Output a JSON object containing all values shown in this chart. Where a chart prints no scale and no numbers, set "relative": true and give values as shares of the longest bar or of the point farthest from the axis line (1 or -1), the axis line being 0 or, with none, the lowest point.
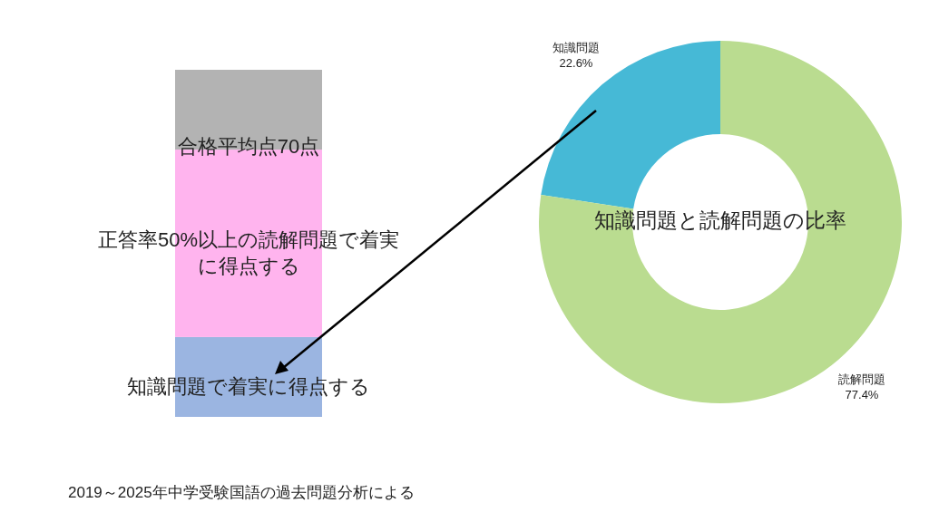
{
  "chart_data": [
    {
      "type": "bar",
      "stacked": true,
      "relative": true,
      "categories": [
        null
      ],
      "series": [
        {
          "name": "知識問題で着実に得点する",
          "color": "#9bb5e1",
          "values": [
            0.23
          ]
        },
        {
          "name": "正答率50%以上の読解問題で着実に得点する",
          "color": "#ffb4ee",
          "values": [
            0.54
          ]
        },
        {
          "color": "#b3b3b3",
          "values": [
            0.23
          ]
        }
      ],
      "annotations": [
        "合格平均点70点",
        "2019～2025年中学受験国語の過去問題分析による"
      ]
    },
    {
      "type": "donut",
      "title": "知識問題と読解問題の比率",
      "categories": [
        "知識問題",
        "読解問題"
      ],
      "values": [
        22.6,
        77.4
      ],
      "colors": [
        "#46b9d6",
        "#badc90"
      ],
      "value_labels": [
        "22.6%",
        "77.4%"
      ]
    }
  ]
}
